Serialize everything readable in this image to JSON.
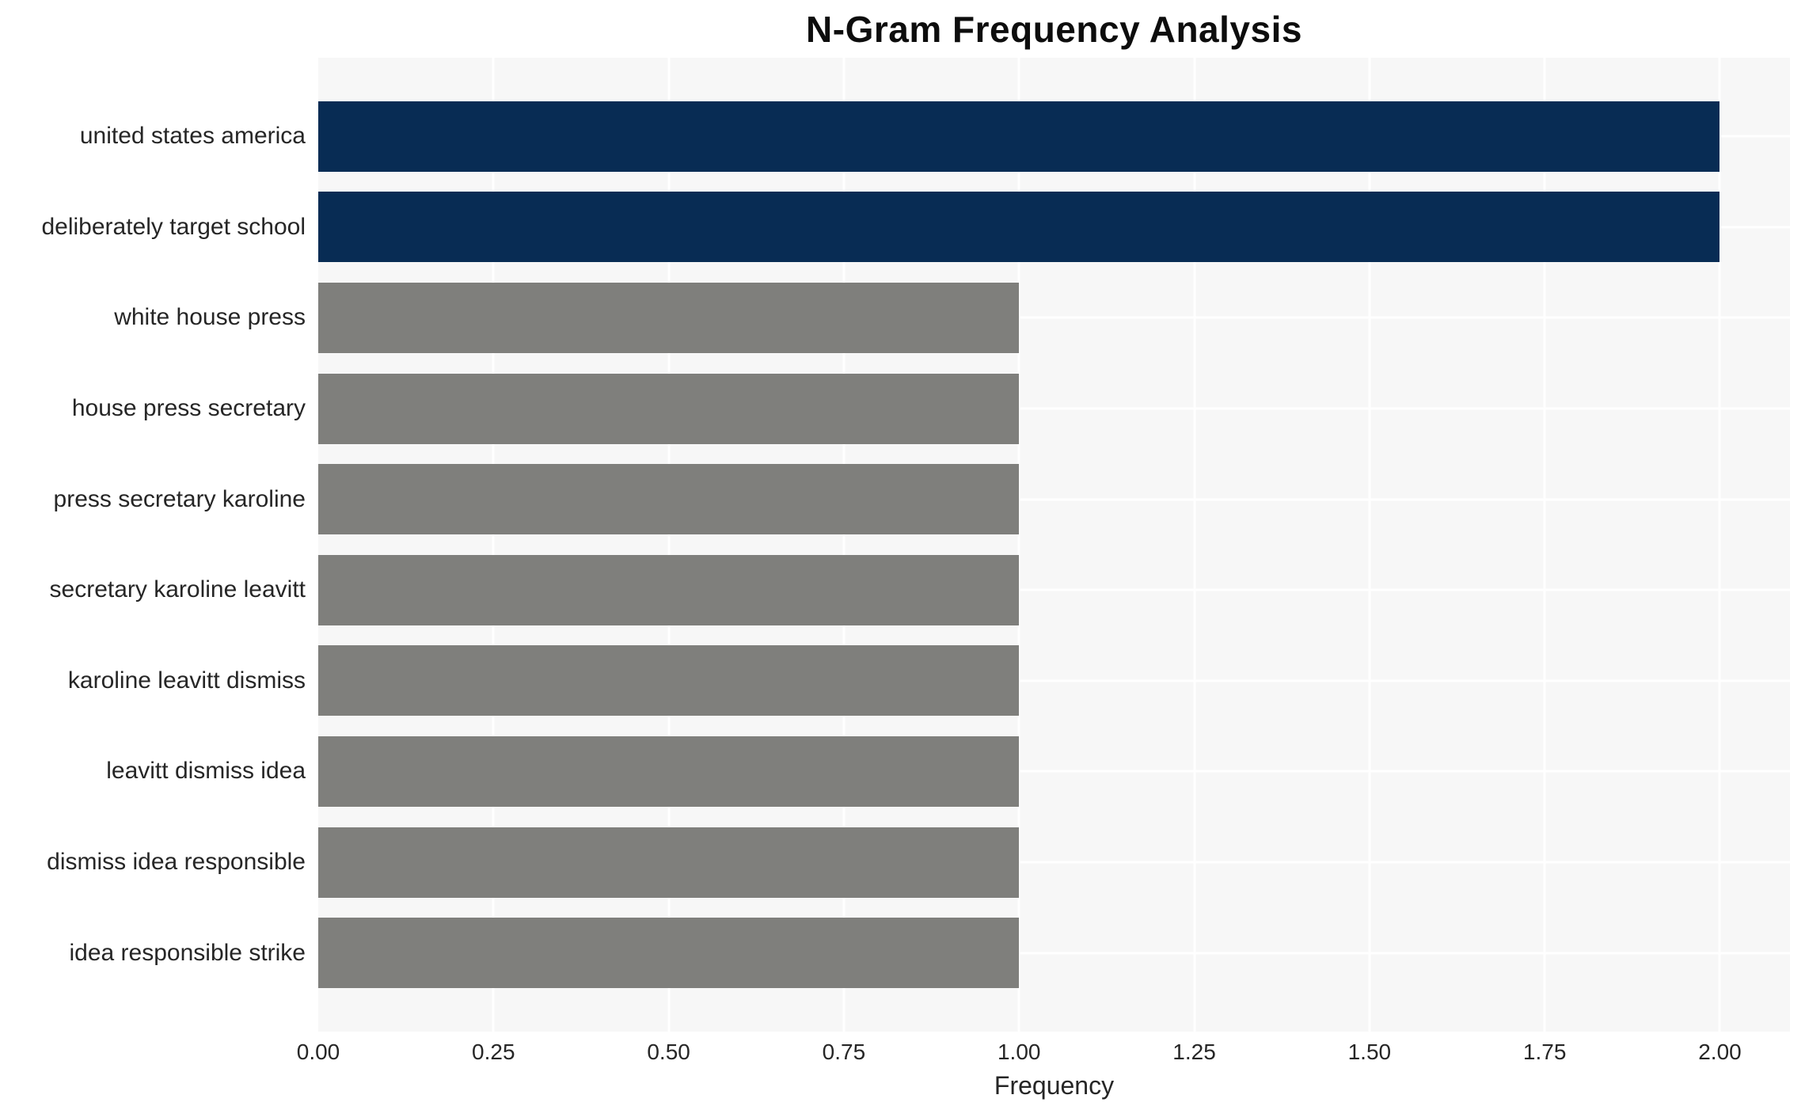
{
  "title": "N-Gram Frequency Analysis",
  "chart_data": {
    "type": "bar",
    "orientation": "horizontal",
    "title": "N-Gram Frequency Analysis",
    "xlabel": "Frequency",
    "ylabel": "",
    "categories": [
      "united states america",
      "deliberately target school",
      "white house press",
      "house press secretary",
      "press secretary karoline",
      "secretary karoline leavitt",
      "karoline leavitt dismiss",
      "leavitt dismiss idea",
      "dismiss idea responsible",
      "idea responsible strike"
    ],
    "values": [
      2,
      2,
      1,
      1,
      1,
      1,
      1,
      1,
      1,
      1
    ],
    "bar_colors": [
      "#00254e",
      "#00254e",
      "#7b7b78",
      "#7b7b78",
      "#7b7b78",
      "#7b7b78",
      "#7b7b78",
      "#7b7b78",
      "#7b7b78",
      "#7b7b78"
    ],
    "x_ticks": [
      "0.00",
      "0.25",
      "0.50",
      "0.75",
      "1.00",
      "1.25",
      "1.50",
      "1.75",
      "2.00"
    ],
    "x_tick_values": [
      0,
      0.25,
      0.5,
      0.75,
      1.0,
      1.25,
      1.5,
      1.75,
      2.0
    ],
    "xlim": [
      0,
      2.1
    ],
    "grid": true,
    "legend": false,
    "colors": {
      "highlight_bar": "#00254e",
      "default_bar": "#7b7b78",
      "plot_background": "#f7f7f7",
      "gridline": "#ffffff",
      "text": "#262626",
      "figure_background": "#ffffff"
    }
  }
}
